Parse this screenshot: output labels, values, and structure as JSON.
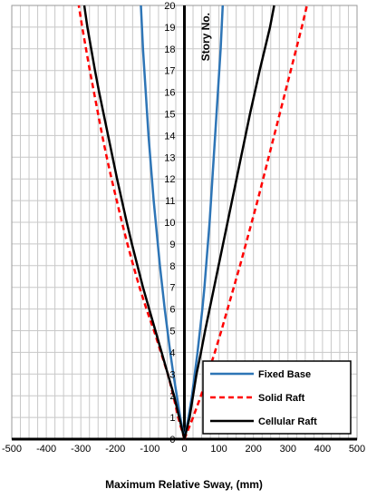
{
  "chart_data": {
    "type": "line",
    "xlabel": "Maximum Relative Sway, (mm)",
    "ylabel": "Story No.",
    "xlim": [
      -500,
      500
    ],
    "ylim": [
      0,
      20
    ],
    "x_ticks": [
      -500,
      -400,
      -300,
      -200,
      -100,
      0,
      100,
      200,
      300,
      400,
      500
    ],
    "y_ticks": [
      0,
      1,
      2,
      3,
      4,
      5,
      6,
      7,
      8,
      9,
      10,
      11,
      12,
      13,
      14,
      15,
      16,
      17,
      18,
      19,
      20
    ],
    "grid": true,
    "legend_position": "bottom-right",
    "series": [
      {
        "name": "Fixed Base",
        "color": "#2e75b6",
        "dash": "solid",
        "branches": [
          {
            "side": "positive",
            "points": [
              [
                0,
                0
              ],
              [
                12,
                1
              ],
              [
                22,
                2
              ],
              [
                30,
                3
              ],
              [
                38,
                4
              ],
              [
                45,
                5
              ],
              [
                52,
                6
              ],
              [
                58,
                7
              ],
              [
                63,
                8
              ],
              [
                68,
                9
              ],
              [
                73,
                10
              ],
              [
                77,
                11
              ],
              [
                81,
                12
              ],
              [
                85,
                13
              ],
              [
                89,
                14
              ],
              [
                93,
                15
              ],
              [
                97,
                16
              ],
              [
                101,
                17
              ],
              [
                105,
                18
              ],
              [
                108,
                19
              ],
              [
                111,
                20
              ]
            ]
          },
          {
            "side": "negative",
            "points": [
              [
                0,
                0
              ],
              [
                -12,
                1
              ],
              [
                -22,
                2
              ],
              [
                -32,
                3
              ],
              [
                -41,
                4
              ],
              [
                -49,
                5
              ],
              [
                -57,
                6
              ],
              [
                -64,
                7
              ],
              [
                -71,
                8
              ],
              [
                -77,
                9
              ],
              [
                -83,
                10
              ],
              [
                -89,
                11
              ],
              [
                -94,
                12
              ],
              [
                -99,
                13
              ],
              [
                -104,
                14
              ],
              [
                -108,
                15
              ],
              [
                -112,
                16
              ],
              [
                -116,
                17
              ],
              [
                -120,
                18
              ],
              [
                -123,
                19
              ],
              [
                -126,
                20
              ]
            ]
          }
        ]
      },
      {
        "name": "Solid Raft",
        "color": "#ff0000",
        "dash": "dashed",
        "branches": [
          {
            "side": "positive",
            "points": [
              [
                0,
                0
              ],
              [
                25,
                1
              ],
              [
                48,
                2
              ],
              [
                68,
                3
              ],
              [
                88,
                4
              ],
              [
                107,
                5
              ],
              [
                125,
                6
              ],
              [
                143,
                7
              ],
              [
                161,
                8
              ],
              [
                178,
                9
              ],
              [
                195,
                10
              ],
              [
                212,
                11
              ],
              [
                228,
                12
              ],
              [
                244,
                13
              ],
              [
                260,
                14
              ],
              [
                276,
                15
              ],
              [
                292,
                16
              ],
              [
                308,
                17
              ],
              [
                324,
                18
              ],
              [
                340,
                19
              ],
              [
                355,
                20
              ]
            ]
          },
          {
            "side": "negative",
            "points": [
              [
                0,
                0
              ],
              [
                -18,
                1
              ],
              [
                -32,
                2
              ],
              [
                -48,
                3
              ],
              [
                -68,
                4
              ],
              [
                -88,
                5
              ],
              [
                -110,
                6
              ],
              [
                -130,
                7
              ],
              [
                -148,
                8
              ],
              [
                -165,
                9
              ],
              [
                -181,
                10
              ],
              [
                -196,
                11
              ],
              [
                -211,
                12
              ],
              [
                -225,
                13
              ],
              [
                -238,
                14
              ],
              [
                -250,
                15
              ],
              [
                -262,
                16
              ],
              [
                -274,
                17
              ],
              [
                -285,
                18
              ],
              [
                -296,
                19
              ],
              [
                -306,
                20
              ]
            ]
          }
        ]
      },
      {
        "name": "Cellular Raft",
        "color": "#000000",
        "dash": "solid",
        "branches": [
          {
            "side": "positive",
            "points": [
              [
                0,
                0
              ],
              [
                15,
                1
              ],
              [
                25,
                2
              ],
              [
                35,
                3
              ],
              [
                48,
                4
              ],
              [
                60,
                5
              ],
              [
                73,
                6
              ],
              [
                86,
                7
              ],
              [
                99,
                8
              ],
              [
                112,
                9
              ],
              [
                125,
                10
              ],
              [
                138,
                11
              ],
              [
                151,
                12
              ],
              [
                164,
                13
              ],
              [
                177,
                14
              ],
              [
                190,
                15
              ],
              [
                204,
                16
              ],
              [
                218,
                17
              ],
              [
                233,
                18
              ],
              [
                248,
                19
              ],
              [
                260,
                20
              ]
            ]
          },
          {
            "side": "negative",
            "points": [
              [
                0,
                0
              ],
              [
                -15,
                1
              ],
              [
                -30,
                2
              ],
              [
                -48,
                3
              ],
              [
                -66,
                4
              ],
              [
                -84,
                5
              ],
              [
                -102,
                6
              ],
              [
                -120,
                7
              ],
              [
                -136,
                8
              ],
              [
                -152,
                9
              ],
              [
                -167,
                10
              ],
              [
                -181,
                11
              ],
              [
                -195,
                12
              ],
              [
                -208,
                13
              ],
              [
                -221,
                14
              ],
              [
                -234,
                15
              ],
              [
                -247,
                16
              ],
              [
                -259,
                17
              ],
              [
                -270,
                18
              ],
              [
                -281,
                19
              ],
              [
                -290,
                20
              ]
            ]
          }
        ]
      }
    ]
  }
}
